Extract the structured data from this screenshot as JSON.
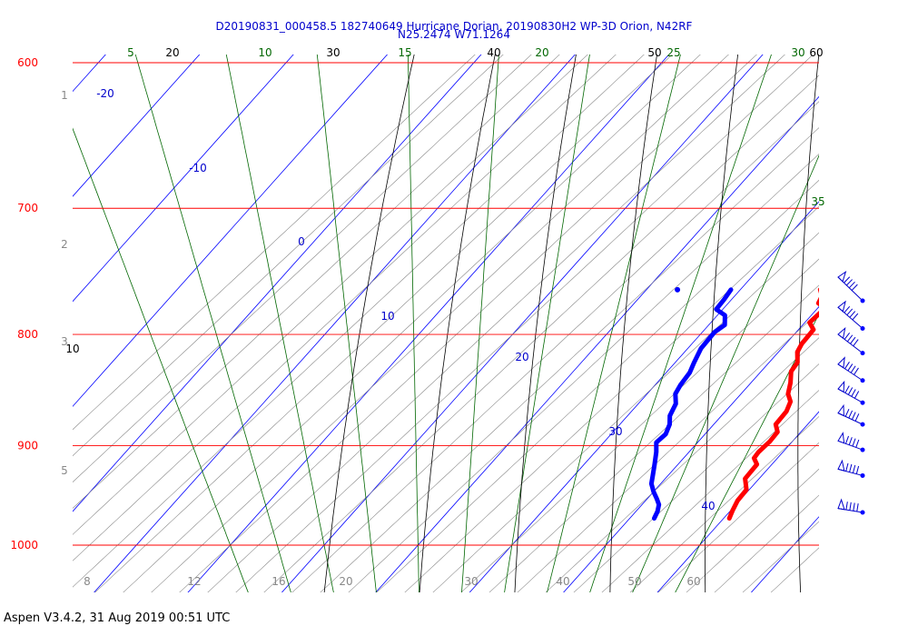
{
  "chart_data": {
    "type": "skew-t",
    "title": "D20190831_000458.5 182740649 Hurricane Dorian, 20190830H2 WP-3D Orion, N42RF",
    "subtitle": "N25.2474 W71.1264",
    "pressure_levels": [
      600,
      700,
      800,
      900,
      1000
    ],
    "left_axis_ticks": [
      "1",
      "2",
      "3",
      "5"
    ],
    "isotherm_labels": [
      "-20",
      "-10",
      "0",
      "10",
      "20",
      "30",
      "40"
    ],
    "top_dry_adiabat_labels": [
      "20",
      "30",
      "40",
      "50",
      "60"
    ],
    "top_moist_adiabat_labels": [
      "5",
      "10",
      "15",
      "20",
      "25",
      "30"
    ],
    "right_moist_label": "35",
    "left_dry_label": "10",
    "bottom_mixing_ratio_labels": [
      "8",
      "12",
      "16",
      "20",
      "30",
      "40",
      "50",
      "60"
    ],
    "series": [
      {
        "name": "Temperature",
        "color": "#ff0000",
        "points": [
          [
            28.5,
            763
          ],
          [
            29.3,
            768
          ],
          [
            29.6,
            774
          ],
          [
            30.8,
            778
          ],
          [
            30.5,
            790
          ],
          [
            31.6,
            796
          ],
          [
            31.7,
            808
          ],
          [
            32.0,
            815
          ],
          [
            33.0,
            824
          ],
          [
            33.2,
            832
          ],
          [
            34.2,
            842
          ],
          [
            35.0,
            852
          ],
          [
            36.0,
            859
          ],
          [
            36.5,
            868
          ],
          [
            36.6,
            880
          ],
          [
            37.5,
            887
          ],
          [
            37.6,
            896
          ],
          [
            37.4,
            906
          ],
          [
            37.5,
            912
          ],
          [
            38.4,
            918
          ],
          [
            38.5,
            932
          ],
          [
            39.7,
            943
          ],
          [
            39.8,
            954
          ],
          [
            40.2,
            964
          ],
          [
            40.6,
            972
          ]
        ]
      },
      {
        "name": "Dewpoint",
        "color": "#0000ff",
        "points": [
          [
            19.0,
            763
          ],
          [
            19.2,
            771
          ],
          [
            19.3,
            779
          ],
          [
            20.8,
            784
          ],
          [
            21.7,
            792
          ],
          [
            21.3,
            798
          ],
          [
            21.4,
            812
          ],
          [
            22.0,
            824
          ],
          [
            22.5,
            833
          ],
          [
            22.7,
            844
          ],
          [
            23.0,
            852
          ],
          [
            24.0,
            861
          ],
          [
            24.5,
            872
          ],
          [
            25.3,
            880
          ],
          [
            25.8,
            889
          ],
          [
            25.6,
            897
          ],
          [
            26.5,
            906
          ],
          [
            27.5,
            918
          ],
          [
            28.3,
            928
          ],
          [
            29.0,
            937
          ],
          [
            30.0,
            945
          ],
          [
            31.0,
            952
          ],
          [
            31.8,
            958
          ],
          [
            32.3,
            965
          ],
          [
            32.6,
            972
          ]
        ]
      }
    ],
    "isolated_dewpoint_point": [
      13.3,
      763
    ],
    "wind_barb_levels": [
      772,
      795,
      816,
      840,
      860,
      880,
      904,
      929,
      966
    ]
  },
  "footer": {
    "software": "Aspen V3.4.2, 31 Aug 2019  00:51 UTC"
  }
}
